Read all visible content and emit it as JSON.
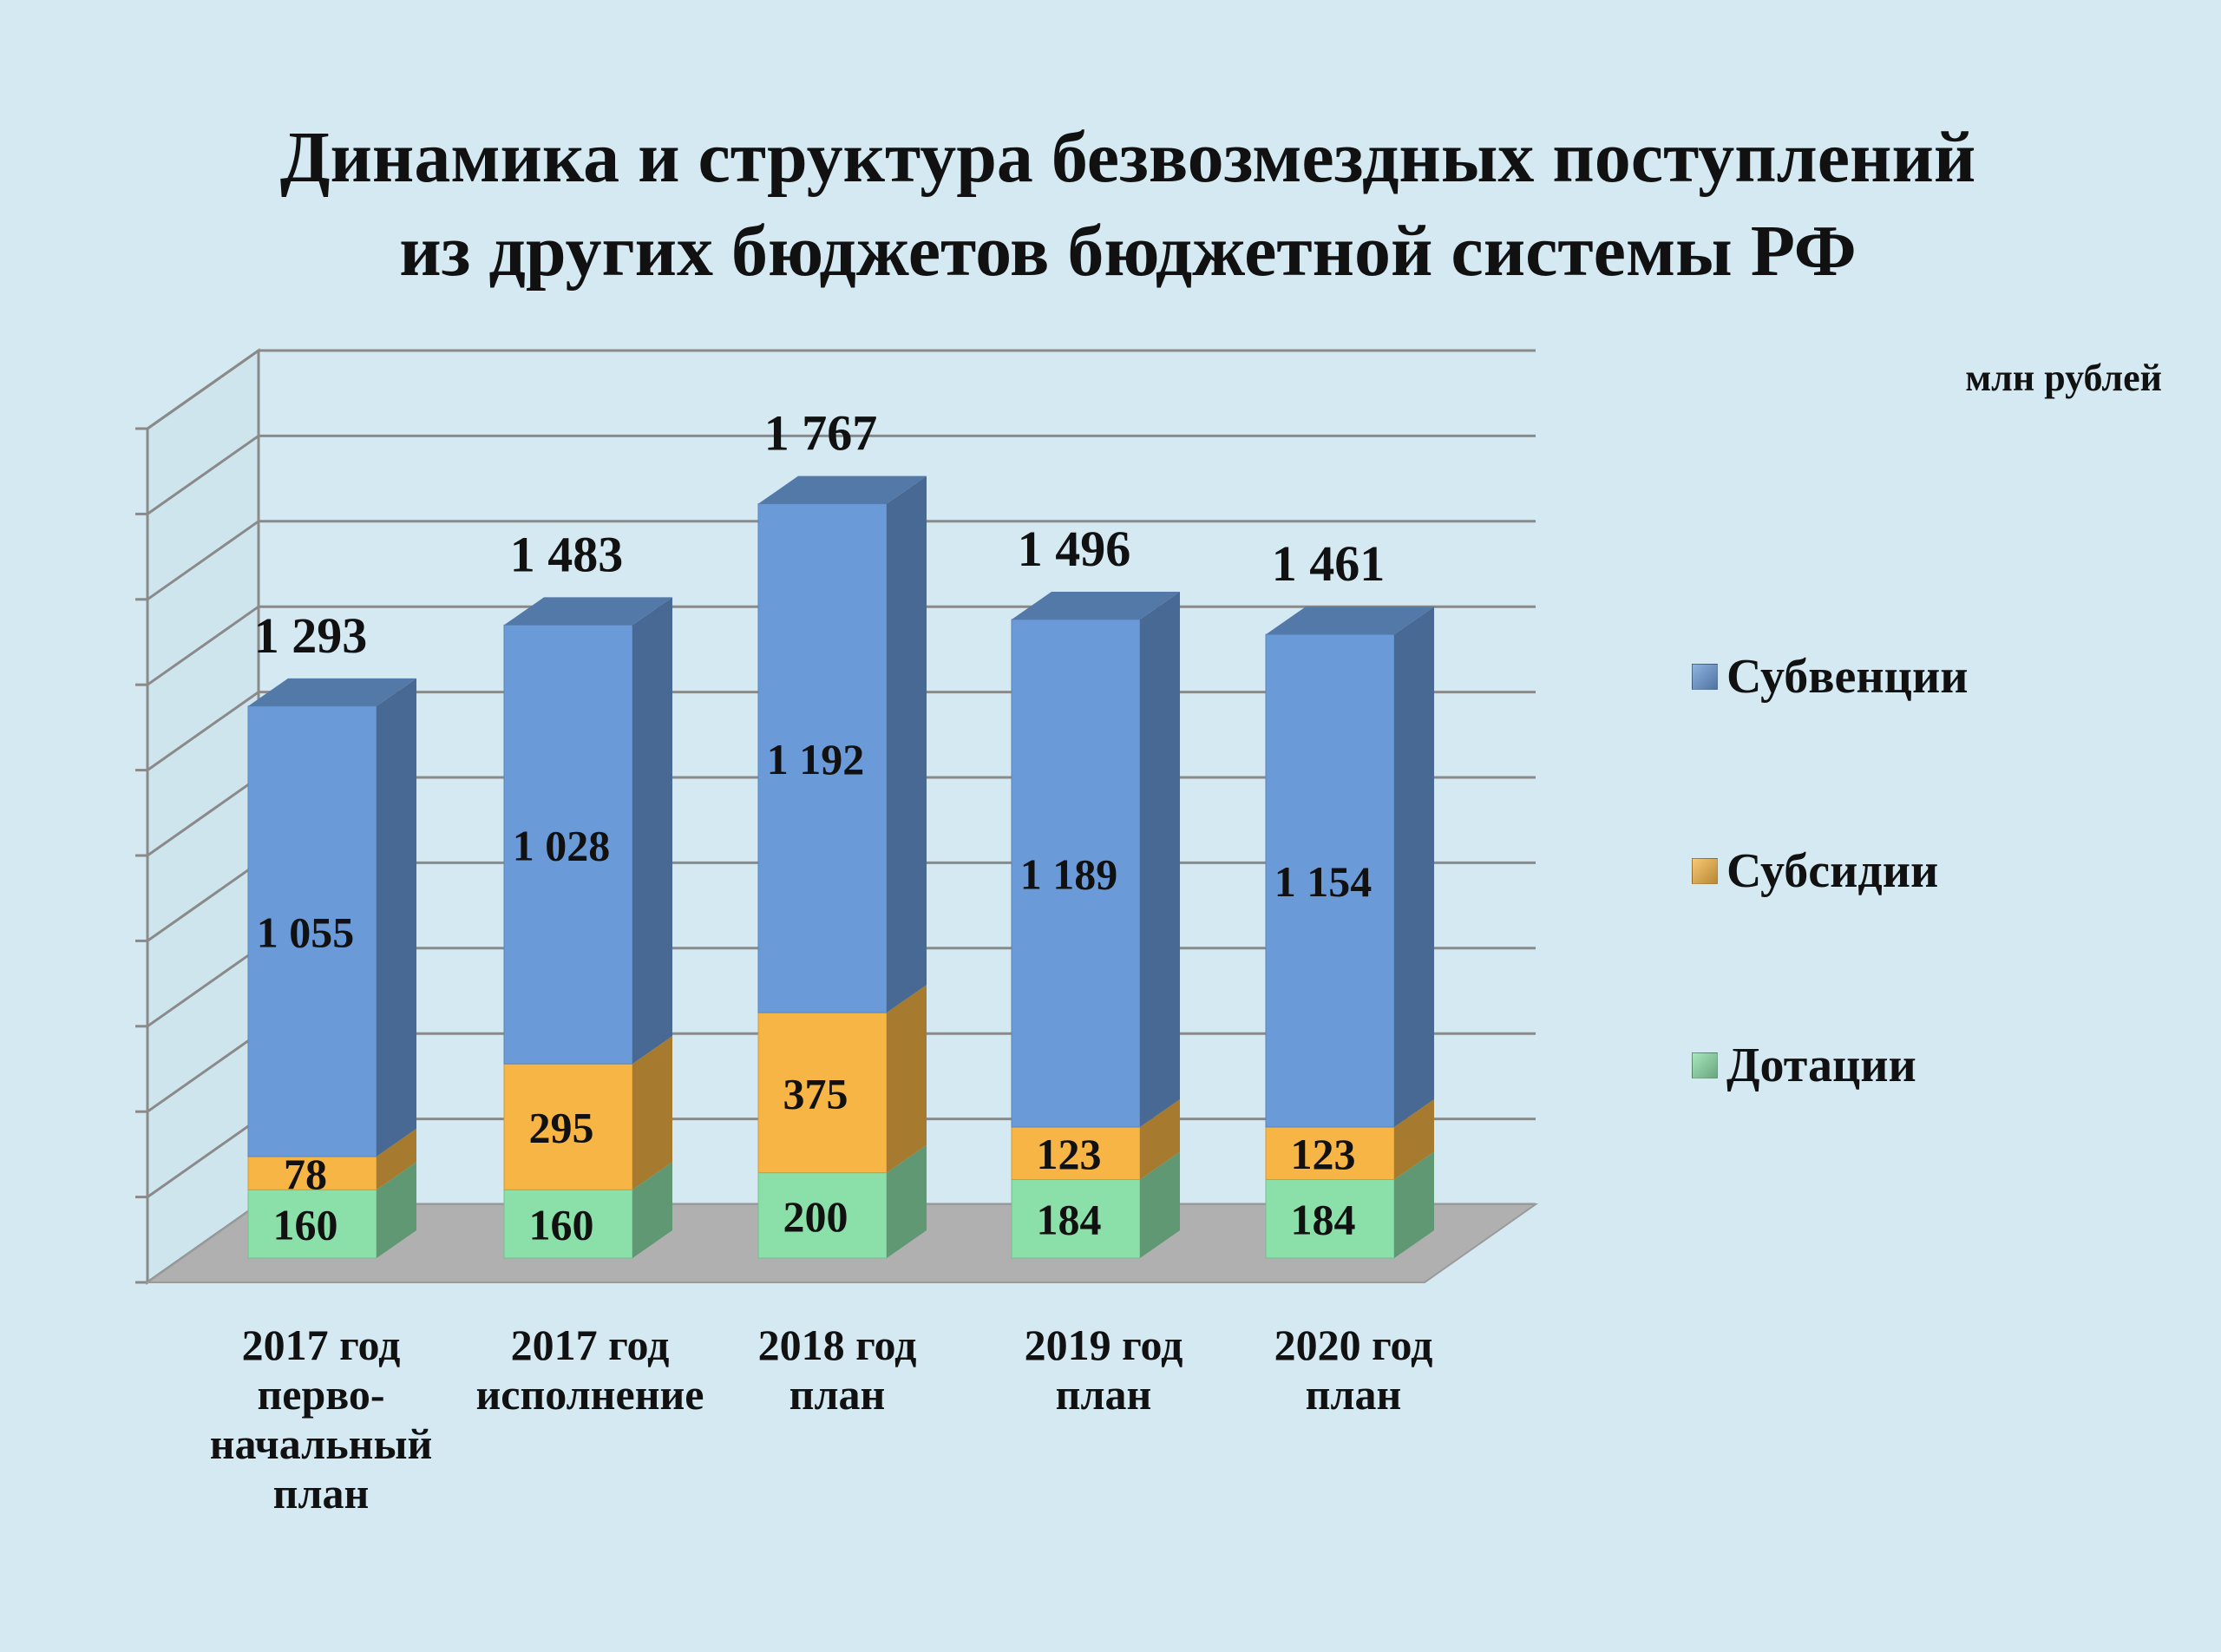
{
  "title_lines": [
    "Динамика и структура безвозмездных поступлений",
    "из других бюджетов бюджетной системы РФ"
  ],
  "unit": "млн рублей",
  "colors": {
    "background": "#d4e9f1",
    "Субвенции": "#6a9bd8",
    "Субсидии": "#f6b545",
    "Дотации": "#8bdfa8",
    "floor": "#b0b0b0",
    "gridline": "#8a8a8a"
  },
  "chart_data": {
    "type": "bar",
    "stacked": true,
    "three_d": true,
    "categories": [
      [
        "2017 год",
        "перво-",
        "начальный",
        "план"
      ],
      [
        "2017 год",
        "исполнение"
      ],
      [
        "2018 год",
        "план"
      ],
      [
        "2019 год",
        "план"
      ],
      [
        "2020 год",
        "план"
      ]
    ],
    "series": [
      {
        "name": "Дотации",
        "values": [
          160,
          160,
          200,
          184,
          184
        ],
        "labels": [
          "160",
          "160",
          "200",
          "184",
          "184"
        ]
      },
      {
        "name": "Субсидии",
        "values": [
          78,
          295,
          375,
          123,
          123
        ],
        "labels": [
          "78",
          "295",
          "375",
          "123",
          "123"
        ]
      },
      {
        "name": "Субвенции",
        "values": [
          1055,
          1028,
          1192,
          1189,
          1154
        ],
        "labels": [
          "1 055",
          "1 028",
          "1 192",
          "1 189",
          "1 154"
        ]
      }
    ],
    "totals": [
      "1 293",
      "1 483",
      "1 767",
      "1 496",
      "1 461"
    ],
    "legend": [
      "Субвенции",
      "Субсидии",
      "Дотации"
    ],
    "legend_position": "right",
    "grid": true
  }
}
